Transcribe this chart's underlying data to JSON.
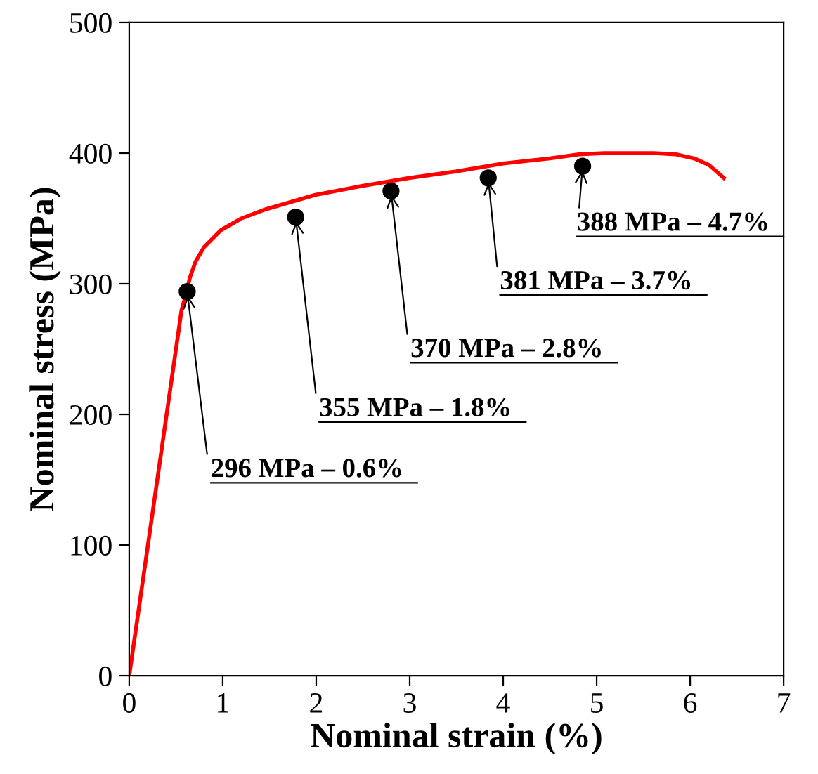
{
  "chart_data": {
    "type": "line",
    "xlabel": "Nominal strain (%)",
    "ylabel": "Nominal stress (MPa)",
    "xlim": [
      0,
      7
    ],
    "ylim": [
      0,
      500
    ],
    "xticks": [
      0,
      1,
      2,
      3,
      4,
      5,
      6,
      7
    ],
    "yticks": [
      0,
      100,
      200,
      300,
      400,
      500
    ],
    "grid": false,
    "series": [
      {
        "color": "#ff0000",
        "marker": "none",
        "line_style": "solid",
        "x": [
          0,
          0.3,
          0.56,
          0.6,
          0.65,
          0.71,
          0.8,
          0.98,
          1.2,
          1.46,
          1.99,
          2.5,
          3.0,
          3.5,
          4.0,
          4.5,
          4.81,
          5.08,
          5.3,
          5.61,
          5.85,
          6.04,
          6.2,
          6.36
        ],
        "values": [
          0,
          150,
          280,
          290,
          305,
          317,
          328,
          341,
          350,
          357,
          368,
          375,
          381,
          386,
          392,
          396,
          399,
          400,
          400,
          400,
          399,
          396,
          391,
          381
        ]
      },
      {
        "type": "scatter",
        "color": "#000000",
        "marker": "circle",
        "x": [
          0.62,
          1.78,
          2.8,
          3.84,
          4.85
        ],
        "values": [
          294,
          351,
          371,
          381,
          390
        ]
      }
    ],
    "annotations": [
      {
        "text": "296 MPa – 0.6%",
        "x": 0.62,
        "y": 294
      },
      {
        "text": "355 MPa – 1.8%",
        "x": 1.78,
        "y": 351
      },
      {
        "text": "370 MPa – 2.8%",
        "x": 2.8,
        "y": 371
      },
      {
        "text": "381 MPa – 3.7%",
        "x": 3.84,
        "y": 381
      },
      {
        "text": "388 MPa – 4.7%",
        "x": 4.85,
        "y": 390
      }
    ]
  }
}
